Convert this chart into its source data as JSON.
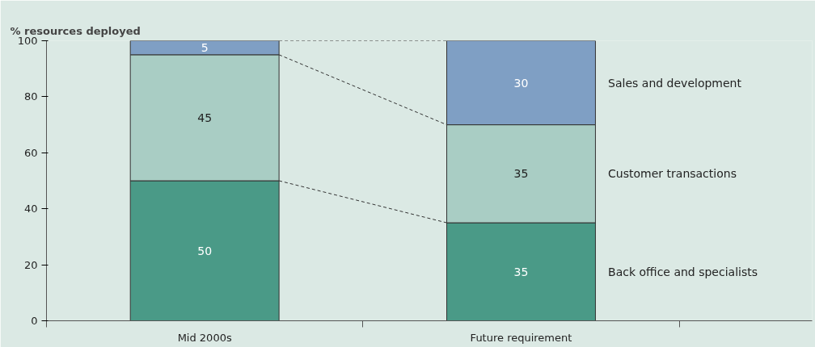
{
  "chart_data": {
    "type": "bar",
    "stacked": true,
    "ylabel": "% resources deployed",
    "categories": [
      "Mid 2000s",
      "Future requirement"
    ],
    "series": [
      {
        "name": "Back office and specialists",
        "color": "#4a9a87",
        "values": [
          50,
          35
        ]
      },
      {
        "name": "Customer transactions",
        "color": "#a9cdc4",
        "values": [
          45,
          35
        ]
      },
      {
        "name": "Sales and development",
        "color": "#7f9fc4",
        "values": [
          5,
          30
        ]
      }
    ],
    "ylim": [
      0,
      100
    ],
    "yticks": [
      0,
      20,
      40,
      60,
      80,
      100
    ],
    "data_labels": true,
    "grid": false,
    "legend": false
  }
}
